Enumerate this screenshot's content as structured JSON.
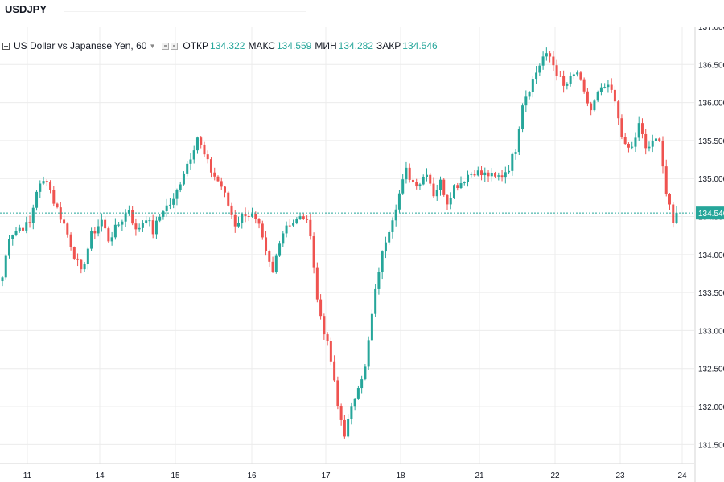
{
  "header": {
    "symbol": "USDJPY"
  },
  "legend": {
    "title": "US Dollar vs Japanese Yen, 60",
    "open_label": "ОТКР",
    "open_value": "134.322",
    "high_label": "МАКС",
    "high_value": "134.559",
    "low_label": "МИН",
    "low_value": "134.282",
    "close_label": "ЗАКР",
    "close_value": "134.546"
  },
  "colors": {
    "up": "#26a69a",
    "down": "#ef5350",
    "grid": "#ececec",
    "price_line": "#26a69a",
    "axis_text": "#131722",
    "price_badge": "#26a69a"
  },
  "chart_data": {
    "type": "candlestick",
    "title": "US Dollar vs Japanese Yen, 60",
    "ylim": [
      131.25,
      137.0
    ],
    "yticks": [
      "131.500",
      "132.000",
      "132.500",
      "133.000",
      "133.500",
      "134.000",
      "134.500",
      "135.000",
      "135.500",
      "136.000",
      "136.500",
      "137.000"
    ],
    "x_labels": [
      "11",
      "14",
      "15",
      "16",
      "17",
      "18",
      "21",
      "22",
      "23",
      "24"
    ],
    "last_price": "134.546",
    "series": [
      {
        "start": 133.7,
        "waypoints": [
          [
            0,
            133.7
          ],
          [
            2,
            134.25
          ],
          [
            5,
            134.35
          ],
          [
            8,
            134.4
          ],
          [
            10,
            134.85
          ],
          [
            13,
            135.0
          ],
          [
            15,
            134.7
          ],
          [
            18,
            134.4
          ],
          [
            21,
            134.0
          ],
          [
            23,
            133.75
          ],
          [
            26,
            134.25
          ],
          [
            29,
            134.45
          ],
          [
            31,
            134.2
          ],
          [
            34,
            134.4
          ],
          [
            37,
            134.6
          ],
          [
            39,
            134.3
          ],
          [
            42,
            134.5
          ],
          [
            44,
            134.3
          ],
          [
            47,
            134.6
          ],
          [
            50,
            134.7
          ],
          [
            53,
            135.1
          ],
          [
            55,
            135.3
          ],
          [
            57,
            135.55
          ],
          [
            59,
            135.3
          ],
          [
            61,
            135.1
          ],
          [
            64,
            134.9
          ],
          [
            66,
            134.65
          ],
          [
            68,
            134.4
          ],
          [
            71,
            134.55
          ],
          [
            73,
            134.5
          ],
          [
            75,
            134.35
          ],
          [
            77,
            134.0
          ],
          [
            79,
            133.75
          ],
          [
            81,
            134.2
          ],
          [
            83,
            134.4
          ],
          [
            86,
            134.45
          ],
          [
            88,
            134.5
          ],
          [
            90,
            134.3
          ],
          [
            92,
            133.4
          ],
          [
            94,
            133.0
          ],
          [
            96,
            132.6
          ],
          [
            98,
            132.0
          ],
          [
            100,
            131.65
          ],
          [
            102,
            131.95
          ],
          [
            104,
            132.3
          ],
          [
            106,
            132.5
          ],
          [
            108,
            133.2
          ],
          [
            110,
            133.8
          ],
          [
            112,
            134.2
          ],
          [
            114,
            134.5
          ],
          [
            116,
            134.8
          ],
          [
            118,
            135.1
          ],
          [
            120,
            134.95
          ],
          [
            122,
            134.95
          ],
          [
            124,
            135.1
          ],
          [
            126,
            134.8
          ],
          [
            128,
            134.95
          ],
          [
            130,
            134.7
          ],
          [
            132,
            134.9
          ],
          [
            134,
            134.95
          ],
          [
            136,
            135.05
          ],
          [
            138,
            135.1
          ],
          [
            140,
            135.05
          ],
          [
            142,
            135.05
          ],
          [
            144,
            135.0
          ],
          [
            146,
            135.05
          ],
          [
            148,
            135.15
          ],
          [
            150,
            135.4
          ],
          [
            152,
            136.0
          ],
          [
            154,
            136.2
          ],
          [
            156,
            136.4
          ],
          [
            158,
            136.6
          ],
          [
            160,
            136.6
          ],
          [
            162,
            136.4
          ],
          [
            164,
            136.2
          ],
          [
            166,
            136.3
          ],
          [
            168,
            136.4
          ],
          [
            170,
            136.1
          ],
          [
            172,
            135.9
          ],
          [
            174,
            136.1
          ],
          [
            176,
            136.2
          ],
          [
            178,
            136.15
          ],
          [
            180,
            135.8
          ],
          [
            182,
            135.4
          ],
          [
            184,
            135.4
          ],
          [
            186,
            135.7
          ],
          [
            188,
            135.4
          ],
          [
            190,
            135.45
          ],
          [
            192,
            135.55
          ],
          [
            194,
            134.8
          ],
          [
            196,
            134.4
          ],
          [
            197,
            134.55
          ]
        ]
      }
    ]
  }
}
